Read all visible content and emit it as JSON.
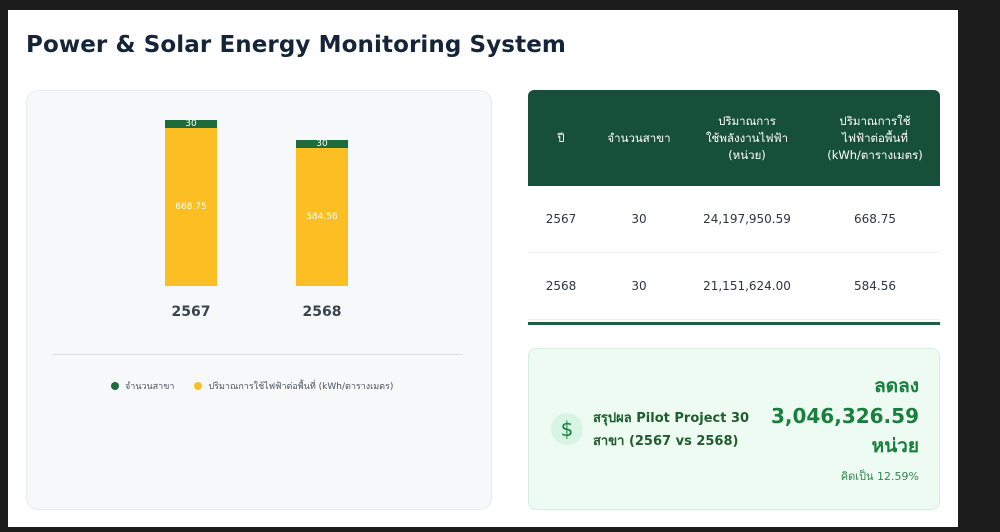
{
  "header": {
    "title": "Power & Solar Energy Monitoring System"
  },
  "chart_data": {
    "type": "bar",
    "stacked": true,
    "categories": [
      "2567",
      "2568"
    ],
    "series": [
      {
        "name": "จำนวนสาขา",
        "values": [
          30,
          30
        ],
        "color": "#1e6b3c"
      },
      {
        "name": "ปริมาณการใช้ไฟฟ้าต่อพื้นที่ (kWh/ตารางเมตร)",
        "values": [
          668.75,
          584.56
        ],
        "color": "#fbbf24"
      }
    ],
    "data_labels": {
      "branches": [
        "30",
        "30"
      ],
      "usage": [
        "668.75",
        "584.56"
      ]
    },
    "legend_position": "bottom",
    "grid": false
  },
  "table": {
    "headers": [
      "ปี",
      "จำนวนสาขา",
      "ปริมาณการ\nใช้พลังงานไฟฟ้า\n(หน่วย)",
      "ปริมาณการใช้\nไฟฟ้าต่อพื้นที่\n(kWh/ตารางเมตร)"
    ],
    "rows": [
      [
        "2567",
        "30",
        "24,197,950.59",
        "668.75"
      ],
      [
        "2568",
        "30",
        "21,151,624.00",
        "584.56"
      ]
    ]
  },
  "summary": {
    "icon": "dollar-icon",
    "label": "สรุปผล Pilot Project 30 สาขา (2567 vs 2568)",
    "word_decrease": "ลดลง",
    "value": "3,046,326.59",
    "unit": "หน่วย",
    "percent_text": "คิดเป็น 12.59%"
  },
  "colors": {
    "header_green": "#17503a",
    "branch_green": "#1e6b3c",
    "usage_yellow": "#fbbf24",
    "summary_green": "#16803c"
  }
}
